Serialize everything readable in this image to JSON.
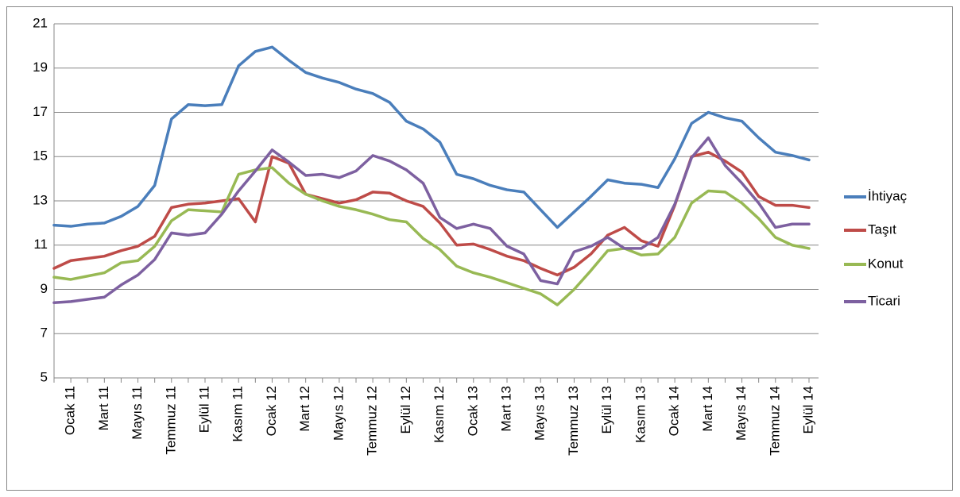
{
  "chart_data": {
    "type": "line",
    "categories": [
      null,
      "Ocak 11",
      null,
      "Mart 11",
      null,
      "Mayıs 11",
      null,
      "Temmuz 11",
      null,
      "Eylül 11",
      null,
      "Kasım 11",
      null,
      "Ocak 12",
      null,
      "Mart 12",
      null,
      "Mayıs 12",
      null,
      "Temmuz 12",
      null,
      "Eylül 12",
      null,
      "Kasım 12",
      null,
      "Ocak 13",
      null,
      "Mart 13",
      null,
      "Mayıs 13",
      null,
      "Temmuz 13",
      null,
      "Eylül 13",
      null,
      "Kasım 13",
      null,
      "Ocak 14",
      null,
      "Mart 14",
      null,
      "Mayıs 14",
      null,
      "Temmuz 14",
      null,
      "Eylül 14"
    ],
    "series": [
      {
        "name": "İhtiyaç",
        "color": "#4a7ebb",
        "values": [
          11.9,
          11.85,
          11.95,
          12.0,
          12.3,
          12.75,
          13.7,
          16.7,
          17.35,
          17.3,
          17.35,
          19.1,
          19.75,
          19.95,
          19.35,
          18.8,
          18.55,
          18.35,
          18.05,
          17.85,
          17.45,
          16.6,
          16.25,
          15.65,
          14.2,
          14.0,
          13.7,
          13.5,
          13.4,
          12.6,
          11.8,
          12.5,
          13.2,
          13.95,
          13.8,
          13.75,
          13.6,
          14.9,
          16.5,
          17.0,
          16.75,
          16.6,
          15.85,
          15.2,
          15.05,
          14.85
        ]
      },
      {
        "name": "Taşıt",
        "color": "#be4b48",
        "values": [
          9.95,
          10.3,
          10.4,
          10.5,
          10.75,
          10.95,
          11.4,
          12.7,
          12.85,
          12.9,
          13.0,
          13.1,
          12.05,
          15.0,
          14.7,
          13.3,
          13.1,
          12.9,
          13.05,
          13.4,
          13.35,
          13.0,
          12.75,
          12.0,
          11.0,
          11.05,
          10.8,
          10.5,
          10.3,
          9.95,
          9.65,
          10.0,
          10.6,
          11.45,
          11.8,
          11.2,
          10.95,
          12.8,
          15.0,
          15.2,
          14.8,
          14.3,
          13.2,
          12.8,
          12.8,
          12.7
        ]
      },
      {
        "name": "Konut",
        "color": "#98b954",
        "values": [
          9.55,
          9.45,
          9.6,
          9.75,
          10.2,
          10.3,
          10.95,
          12.1,
          12.6,
          12.55,
          12.5,
          14.2,
          14.4,
          14.5,
          13.8,
          13.3,
          13.0,
          12.75,
          12.6,
          12.4,
          12.15,
          12.05,
          11.3,
          10.8,
          10.05,
          9.75,
          9.55,
          9.3,
          9.05,
          8.8,
          8.3,
          9.0,
          9.85,
          10.75,
          10.85,
          10.55,
          10.6,
          11.35,
          12.9,
          13.45,
          13.4,
          12.9,
          12.2,
          11.35,
          11.0,
          10.85
        ]
      },
      {
        "name": "Ticari",
        "color": "#7d60a0",
        "values": [
          8.4,
          8.45,
          8.55,
          8.65,
          9.2,
          9.65,
          10.35,
          11.55,
          11.45,
          11.55,
          12.4,
          13.45,
          14.35,
          15.3,
          14.75,
          14.15,
          14.2,
          14.05,
          14.35,
          15.05,
          14.8,
          14.4,
          13.8,
          12.25,
          11.75,
          11.95,
          11.75,
          10.95,
          10.6,
          9.4,
          9.25,
          10.7,
          10.95,
          11.35,
          10.85,
          10.85,
          11.35,
          12.85,
          14.95,
          15.85,
          14.6,
          13.8,
          12.9,
          11.8,
          11.95,
          11.95
        ]
      }
    ],
    "ylim": [
      5,
      21
    ],
    "yticks": [
      5,
      7,
      9,
      11,
      13,
      15,
      17,
      19,
      21
    ],
    "grid": true,
    "legend": "right"
  }
}
